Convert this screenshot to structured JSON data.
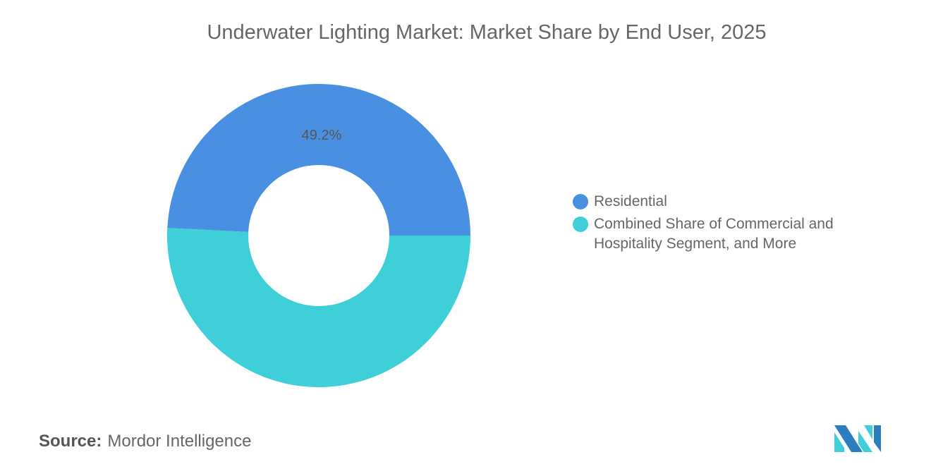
{
  "chart_data": {
    "type": "pie",
    "donut": true,
    "title": "Underwater Lighting Market: Market Share by End User, 2025",
    "categories": [
      "Residential",
      "Combined Share of Commercial and Hospitality Segment, and More"
    ],
    "values": [
      49.2,
      50.8
    ],
    "data_labels": [
      "49.2%",
      ""
    ],
    "colors": [
      "#4a90e2",
      "#3ecfd8"
    ],
    "legend_position": "right"
  },
  "source": {
    "label": "Source:",
    "value": "Mordor Intelligence"
  },
  "logo_colors": [
    "#2b7fc0",
    "#3ecfd8"
  ]
}
